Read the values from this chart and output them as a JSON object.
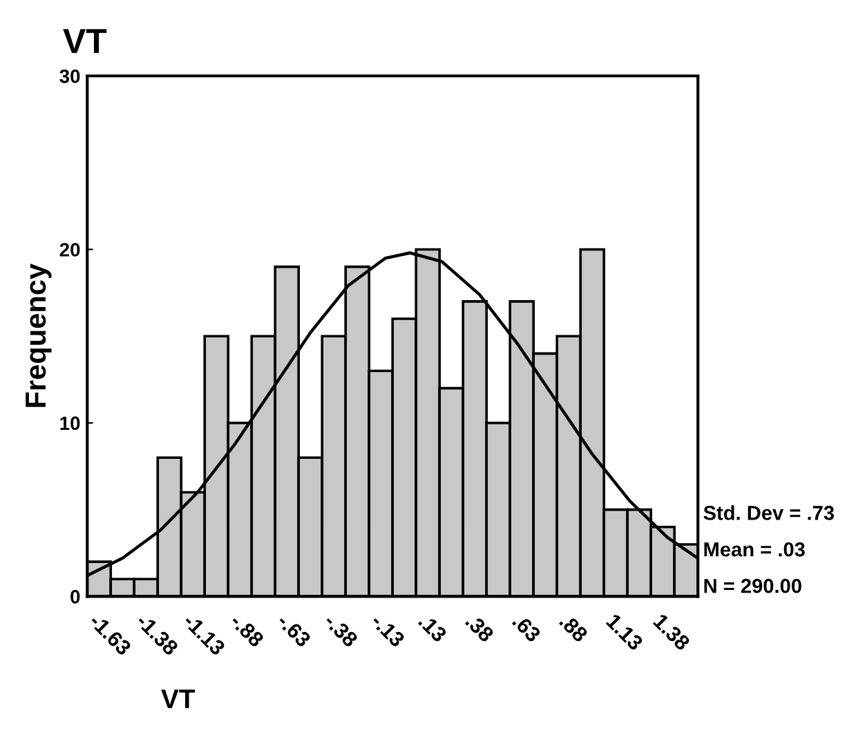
{
  "chart_data": {
    "type": "histogram",
    "title": "VT",
    "xlabel": "VT",
    "ylabel": "Frequency",
    "bins": [
      -1.6875,
      -1.5625,
      -1.4375,
      -1.3125,
      -1.1875,
      -1.0625,
      -0.9375,
      -0.8125,
      -0.6875,
      -0.5625,
      -0.4375,
      -0.3125,
      -0.1875,
      -0.0625,
      0.0625,
      0.1875,
      0.3125,
      0.4375,
      0.5625,
      0.6875,
      0.8125,
      0.9375,
      1.0625,
      1.1875,
      1.3125,
      1.4375,
      1.5625
    ],
    "values": [
      2,
      1,
      1,
      8,
      6,
      15,
      10,
      15,
      19,
      8,
      15,
      19,
      13,
      16,
      20,
      12,
      17,
      10,
      17,
      14,
      15,
      20,
      5,
      5,
      4,
      3
    ],
    "color": "#c8c8c8",
    "series": [
      {
        "type": "line",
        "color": "#000000",
        "x": [
          -1.6875,
          -1.5,
          -1.3,
          -1.1,
          -0.9,
          -0.7,
          -0.5,
          -0.3,
          -0.1,
          0.03,
          0.2,
          0.4,
          0.6,
          0.8,
          1.0,
          1.2,
          1.4,
          1.5625
        ],
        "values": [
          1.2,
          2.2,
          3.8,
          6.0,
          8.8,
          12.0,
          15.2,
          17.9,
          19.5,
          19.8,
          19.3,
          17.4,
          14.6,
          11.4,
          8.2,
          5.5,
          3.4,
          2.2
        ]
      }
    ],
    "xlim": [
      -1.6875,
      1.5625
    ],
    "ylim": [
      0,
      30
    ],
    "yticks": [
      0,
      10,
      20,
      30
    ],
    "xticks": [
      {
        "value": -1.625,
        "label": "-1.63"
      },
      {
        "value": -1.375,
        "label": "-1.38"
      },
      {
        "value": -1.125,
        "label": "-1.13"
      },
      {
        "value": -0.875,
        "label": "-.88"
      },
      {
        "value": -0.625,
        "label": "-.63"
      },
      {
        "value": -0.375,
        "label": "-.38"
      },
      {
        "value": -0.125,
        "label": "-.13"
      },
      {
        "value": 0.125,
        "label": ".13"
      },
      {
        "value": 0.375,
        "label": ".38"
      },
      {
        "value": 0.625,
        "label": ".63"
      },
      {
        "value": 0.875,
        "label": ".88"
      },
      {
        "value": 1.125,
        "label": "1.13"
      },
      {
        "value": 1.375,
        "label": "1.38"
      }
    ],
    "annotations": [
      "Std. Dev = .73",
      "Mean = .03",
      "N = 290.00"
    ],
    "grid": false,
    "legend": false
  }
}
